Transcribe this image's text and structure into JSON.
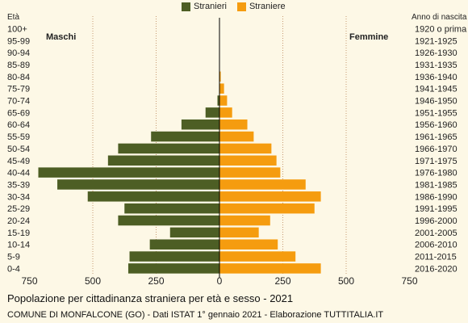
{
  "legend": {
    "male_label": "Stranieri",
    "female_label": "Straniere"
  },
  "headers": {
    "age": "Età",
    "birth_year": "Anno di nascita"
  },
  "side_labels": {
    "left": "Maschi",
    "right": "Femmine"
  },
  "title": "Popolazione per cittadinanza straniera per età e sesso - 2021",
  "source": "COMUNE DI MONFALCONE (GO) - Dati ISTAT 1° gennaio 2021 - Elaborazione TUTTITALIA.IT",
  "colors": {
    "male": "#4d5e24",
    "female": "#f59c0f",
    "grid": "#c89a72",
    "axis": "#000000"
  },
  "chart_data": {
    "type": "bar",
    "orientation": "horizontal",
    "layout": "population-pyramid",
    "categories": [
      "100+",
      "95-99",
      "90-94",
      "85-89",
      "80-84",
      "75-79",
      "70-74",
      "65-69",
      "60-64",
      "55-59",
      "50-54",
      "45-49",
      "40-44",
      "35-39",
      "30-34",
      "25-29",
      "20-24",
      "15-19",
      "10-14",
      "5-9",
      "0-4"
    ],
    "birth_years": [
      "1920 o prima",
      "1921-1925",
      "1926-1930",
      "1931-1935",
      "1936-1940",
      "1941-1945",
      "1946-1950",
      "1951-1955",
      "1956-1960",
      "1961-1965",
      "1966-1970",
      "1971-1975",
      "1976-1980",
      "1981-1985",
      "1986-1990",
      "1991-1995",
      "1996-2000",
      "2001-2005",
      "2006-2010",
      "2011-2015",
      "2016-2020"
    ],
    "series": [
      {
        "name": "Stranieri",
        "side": "left",
        "values": [
          0,
          0,
          0,
          0,
          1,
          1,
          8,
          55,
          150,
          270,
          400,
          440,
          715,
          640,
          520,
          375,
          400,
          195,
          275,
          355,
          360
        ]
      },
      {
        "name": "Straniere",
        "side": "right",
        "values": [
          0,
          0,
          0,
          0,
          5,
          18,
          30,
          50,
          110,
          135,
          205,
          225,
          240,
          340,
          400,
          375,
          200,
          155,
          230,
          300,
          400
        ]
      }
    ],
    "xticks": [
      "750",
      "500",
      "250",
      "0",
      "250",
      "500",
      "750"
    ],
    "xlim": [
      -750,
      750
    ],
    "grid": true,
    "legend_position": "top"
  }
}
